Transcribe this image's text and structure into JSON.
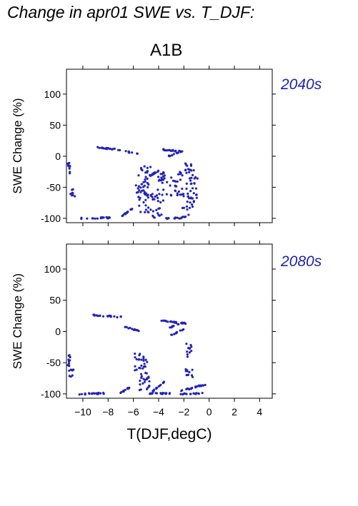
{
  "figure": {
    "title": "Change in apr01 SWE vs. T_DJF:",
    "subtitle": "A1B",
    "colors": {
      "points": "#2222b8",
      "period_label": "#1f1fb0"
    }
  },
  "chart_data": [
    {
      "type": "scatter",
      "panel_label": "2040s",
      "xlabel": "",
      "ylabel": "SWE Change (%)",
      "xlim": [
        -11.3,
        5.0
      ],
      "ylim": [
        -107,
        140
      ],
      "xticks": [
        -10,
        -8,
        -6,
        -4,
        -2,
        0,
        2,
        4
      ],
      "yticks": [
        -100,
        -50,
        0,
        50,
        100
      ],
      "show_x_tick_labels": false,
      "grid": false,
      "clusters": [
        {
          "x": [
            -11.2,
            -11.0
          ],
          "y": [
            -30,
            -10
          ]
        },
        {
          "x": [
            -11.0,
            -10.6
          ],
          "y": [
            -65,
            -50
          ]
        },
        {
          "x": [
            -9.0,
            -6.8
          ],
          "y": [
            14,
            10
          ]
        },
        {
          "x": [
            -6.6,
            -5.6
          ],
          "y": [
            8,
            3
          ]
        },
        {
          "x": [
            -10.2,
            -7.8
          ],
          "y": [
            -100,
            -99
          ]
        },
        {
          "x": [
            -7.0,
            -6.1
          ],
          "y": [
            -98,
            -85
          ]
        },
        {
          "x": [
            -5.8,
            -4.9
          ],
          "y": [
            -60,
            -40
          ]
        },
        {
          "x": [
            -5.6,
            -4.6
          ],
          "y": [
            -100,
            -15
          ]
        },
        {
          "x": [
            -5.2,
            -4.2
          ],
          "y": [
            -40,
            -25
          ]
        },
        {
          "x": [
            -4.5,
            -3.6
          ],
          "y": [
            -100,
            -60
          ]
        },
        {
          "x": [
            -4.2,
            -3.5
          ],
          "y": [
            -55,
            -20
          ]
        },
        {
          "x": [
            -3.8,
            -1.9
          ],
          "y": [
            11,
            7
          ]
        },
        {
          "x": [
            -3.4,
            -2.1
          ],
          "y": [
            -65,
            -25
          ]
        },
        {
          "x": [
            -3.2,
            -2.2
          ],
          "y": [
            0,
            8
          ]
        },
        {
          "x": [
            -3.5,
            -2.5
          ],
          "y": [
            -100,
            -99
          ]
        },
        {
          "x": [
            -2.2,
            -1.2
          ],
          "y": [
            -85,
            -60
          ]
        },
        {
          "x": [
            -1.8,
            -0.9
          ],
          "y": [
            -70,
            -25
          ]
        },
        {
          "x": [
            -2.4,
            -1.6
          ],
          "y": [
            -100,
            -95
          ]
        },
        {
          "x": [
            -1.9,
            -1.2
          ],
          "y": [
            -25,
            -10
          ]
        }
      ]
    },
    {
      "type": "scatter",
      "panel_label": "2080s",
      "xlabel": "T(DJF,degC)",
      "ylabel": "SWE Change (%)",
      "xlim": [
        -11.3,
        5.0
      ],
      "ylim": [
        -107,
        140
      ],
      "xticks": [
        -10,
        -8,
        -6,
        -4,
        -2,
        0,
        2,
        4
      ],
      "xtick_labels": [
        "−10",
        "−8",
        "−6",
        "−4",
        "−2",
        "0",
        "2",
        "4"
      ],
      "yticks": [
        -100,
        -50,
        0,
        50,
        100
      ],
      "show_x_tick_labels": true,
      "grid": false,
      "clusters": [
        {
          "x": [
            -11.2,
            -11.0
          ],
          "y": [
            -55,
            -35
          ]
        },
        {
          "x": [
            -11.1,
            -10.7
          ],
          "y": [
            -72,
            -60
          ]
        },
        {
          "x": [
            -10.3,
            -8.0
          ],
          "y": [
            -100,
            -99
          ]
        },
        {
          "x": [
            -9.2,
            -6.9
          ],
          "y": [
            26,
            23
          ]
        },
        {
          "x": [
            -6.7,
            -5.5
          ],
          "y": [
            8,
            0
          ]
        },
        {
          "x": [
            -7.1,
            -6.2
          ],
          "y": [
            -100,
            -88
          ]
        },
        {
          "x": [
            -5.9,
            -4.9
          ],
          "y": [
            -70,
            -35
          ]
        },
        {
          "x": [
            -5.6,
            -4.6
          ],
          "y": [
            -95,
            -55
          ]
        },
        {
          "x": [
            -4.7,
            -3.5
          ],
          "y": [
            -100,
            -80
          ]
        },
        {
          "x": [
            -4.9,
            -3.1
          ],
          "y": [
            -100,
            -99
          ]
        },
        {
          "x": [
            -3.8,
            -1.8
          ],
          "y": [
            17,
            13
          ]
        },
        {
          "x": [
            -3.3,
            -1.9
          ],
          "y": [
            5,
            15
          ]
        },
        {
          "x": [
            -3.0,
            -2.0
          ],
          "y": [
            -5,
            3
          ]
        },
        {
          "x": [
            -2.2,
            -0.3
          ],
          "y": [
            -95,
            -85
          ]
        },
        {
          "x": [
            -1.9,
            -1.3
          ],
          "y": [
            -75,
            -60
          ]
        },
        {
          "x": [
            -1.8,
            -1.4
          ],
          "y": [
            -40,
            -20
          ]
        },
        {
          "x": [
            -2.3,
            -0.4
          ],
          "y": [
            -100,
            -99
          ]
        }
      ]
    }
  ]
}
